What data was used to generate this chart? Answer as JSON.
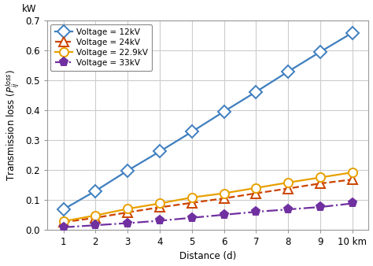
{
  "x": [
    1,
    2,
    3,
    4,
    5,
    6,
    7,
    8,
    9,
    10
  ],
  "series": [
    {
      "label": "Voltage = 12kV",
      "color": "#3f7fbf",
      "linestyle": "-",
      "marker": "D",
      "markersize": 8,
      "linewidth": 1.6,
      "values": [
        0.068,
        0.13,
        0.198,
        0.262,
        0.328,
        0.396,
        0.462,
        0.53,
        0.596,
        0.66
      ]
    },
    {
      "label": "Voltage = 24kV",
      "color": "#cc4400",
      "linestyle": "--",
      "marker": "^",
      "markersize": 8,
      "linewidth": 1.6,
      "values": [
        0.025,
        0.04,
        0.058,
        0.075,
        0.09,
        0.105,
        0.122,
        0.138,
        0.155,
        0.168
      ]
    },
    {
      "label": "Voltage = 22.9kV",
      "color": "#e8a000",
      "linestyle": "-",
      "marker": "o",
      "markersize": 8,
      "linewidth": 1.6,
      "values": [
        0.028,
        0.048,
        0.07,
        0.088,
        0.108,
        0.122,
        0.14,
        0.158,
        0.175,
        0.192
      ]
    },
    {
      "label": "Voltage = 33kV",
      "color": "#7030a0",
      "linestyle": "-.",
      "marker": "p",
      "markersize": 8,
      "linewidth": 1.6,
      "values": [
        0.008,
        0.015,
        0.022,
        0.03,
        0.04,
        0.05,
        0.06,
        0.068,
        0.076,
        0.088
      ]
    }
  ],
  "xlabel": "Distance (d)",
  "kw_label": "kW",
  "xlim": [
    0.5,
    10.5
  ],
  "ylim": [
    0,
    0.7
  ],
  "yticks": [
    0.0,
    0.1,
    0.2,
    0.3,
    0.4,
    0.5,
    0.6,
    0.7
  ],
  "xticks": [
    1,
    2,
    3,
    4,
    5,
    6,
    7,
    8,
    9,
    10
  ],
  "grid_color": "#cccccc",
  "bg_color": "#ffffff",
  "fig_bg": "#ffffff",
  "axis_fontsize": 8.5,
  "legend_fontsize": 7.5,
  "spine_color": "#999999"
}
